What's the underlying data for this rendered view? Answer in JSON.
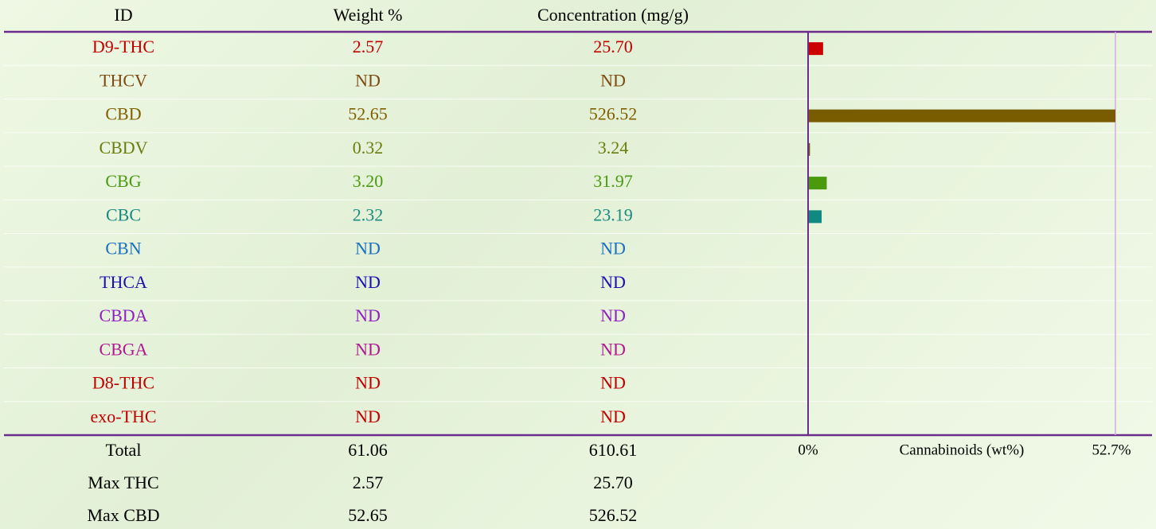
{
  "table": {
    "columns": [
      "ID",
      "Weight %",
      "Concentration (mg/g)"
    ],
    "rows": [
      [
        "D9-THC",
        "2.57",
        "25.70"
      ],
      [
        "THCV",
        "ND",
        "ND"
      ],
      [
        "CBD",
        "52.65",
        "526.52"
      ],
      [
        "CBDV",
        "0.32",
        "3.24"
      ],
      [
        "CBG",
        "3.20",
        "31.97"
      ],
      [
        "CBC",
        "2.32",
        "23.19"
      ],
      [
        "CBN",
        "ND",
        "ND"
      ],
      [
        "THCA",
        "ND",
        "ND"
      ],
      [
        "CBDA",
        "ND",
        "ND"
      ],
      [
        "CBGA",
        "ND",
        "ND"
      ],
      [
        "D8-THC",
        "ND",
        "ND"
      ],
      [
        "exo-THC",
        "ND",
        "ND"
      ]
    ],
    "row_colors": [
      "#c00000",
      "#7f4a10",
      "#806000",
      "#6b7d10",
      "#4a9a10",
      "#1a8a80",
      "#1a70c0",
      "#1a10b0",
      "#9020c0",
      "#b01890",
      "#c00000",
      "#c00000"
    ],
    "footer_rows": [
      [
        "Total",
        "61.06",
        "610.61"
      ],
      [
        "Max THC",
        "2.57",
        "25.70"
      ],
      [
        "Max CBD",
        "52.65",
        "526.52"
      ]
    ]
  },
  "chart_data": {
    "type": "bar",
    "orientation": "horizontal",
    "xlabel": "Cannabinoids (wt%)",
    "values": [
      2.57,
      null,
      52.65,
      0.32,
      3.2,
      2.32,
      null,
      null,
      null,
      null,
      null,
      null
    ],
    "colors": [
      "#cc0000",
      null,
      "#7a5c00",
      "#6b5a10",
      "#4a9a10",
      "#108a80",
      null,
      null,
      null,
      null,
      null,
      null
    ],
    "xlim": [
      0,
      52.65
    ],
    "xticks": [
      {
        "value": 0,
        "label": "0%"
      },
      {
        "value": 52.65,
        "label": "52.7%"
      }
    ]
  }
}
